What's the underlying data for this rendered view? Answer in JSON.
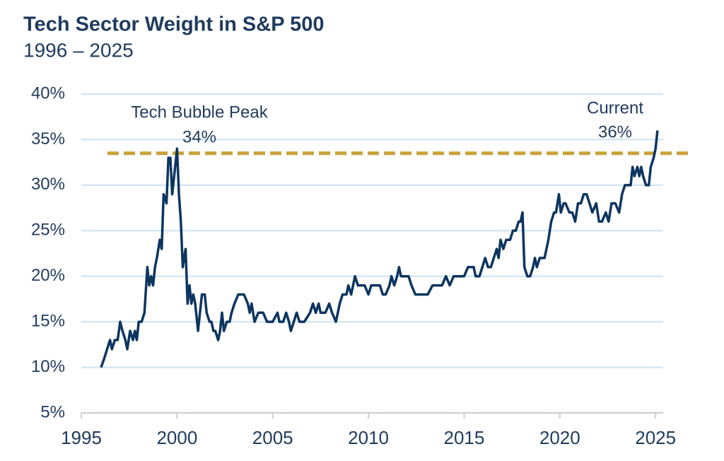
{
  "chart_data": {
    "type": "line",
    "title": "Tech Sector Weight in S&P 500",
    "subtitle": "1996 – 2025",
    "color": "#0d3560",
    "grid": true,
    "xlim": [
      1995,
      2025.4
    ],
    "xticks": [
      1995,
      2000,
      2005,
      2010,
      2015,
      2020,
      2025
    ],
    "ylim": [
      5,
      40
    ],
    "yticks": [
      {
        "value": 5,
        "label": "5%"
      },
      {
        "value": 10,
        "label": "10%"
      },
      {
        "value": 15,
        "label": "15%"
      },
      {
        "value": 20,
        "label": "20%"
      },
      {
        "value": 25,
        "label": "25%"
      },
      {
        "value": 30,
        "label": "30%"
      },
      {
        "value": 35,
        "label": "35%"
      },
      {
        "value": 40,
        "label": "40%"
      }
    ],
    "reference_line": {
      "value": 33.5,
      "color": "#c9a33a",
      "dashed": true
    },
    "peak_label": "Tech Bubble Peak",
    "peak_value_label": "34%",
    "current_label": "Current",
    "current_value_label": "36%",
    "x": [
      1996.03,
      1996.2,
      1996.35,
      1996.5,
      1996.6,
      1996.75,
      1996.9,
      1997.03,
      1997.15,
      1997.3,
      1997.4,
      1997.55,
      1997.7,
      1997.8,
      1997.9,
      1998.0,
      1998.15,
      1998.3,
      1998.45,
      1998.55,
      1998.65,
      1998.75,
      1998.85,
      1998.95,
      1999.1,
      1999.2,
      1999.3,
      1999.45,
      1999.55,
      1999.65,
      1999.75,
      1999.9,
      2000.0,
      2000.1,
      2000.2,
      2000.3,
      2000.45,
      2000.55,
      2000.65,
      2000.75,
      2000.85,
      2000.95,
      2001.1,
      2001.2,
      2001.3,
      2001.45,
      2001.55,
      2001.7,
      2001.8,
      2001.9,
      2002.0,
      2002.15,
      2002.25,
      2002.35,
      2002.45,
      2002.6,
      2002.75,
      2002.85,
      2003.0,
      2003.2,
      2003.5,
      2003.7,
      2003.8,
      2003.9,
      2004.05,
      2004.25,
      2004.5,
      2004.7,
      2005.0,
      2005.25,
      2005.35,
      2005.55,
      2005.7,
      2005.85,
      2005.95,
      2006.1,
      2006.25,
      2006.4,
      2006.65,
      2006.95,
      2007.1,
      2007.25,
      2007.4,
      2007.5,
      2007.75,
      2007.95,
      2008.1,
      2008.3,
      2008.5,
      2008.65,
      2008.85,
      2008.95,
      2009.1,
      2009.3,
      2009.45,
      2009.8,
      2010.0,
      2010.15,
      2010.6,
      2010.75,
      2010.9,
      2011.1,
      2011.2,
      2011.35,
      2011.5,
      2011.6,
      2011.7,
      2012.1,
      2012.25,
      2012.45,
      2012.9,
      2013.1,
      2013.35,
      2013.85,
      2014.05,
      2014.25,
      2014.45,
      2014.7,
      2015.0,
      2015.2,
      2015.5,
      2015.6,
      2015.8,
      2015.95,
      2016.1,
      2016.25,
      2016.4,
      2016.55,
      2016.7,
      2016.8,
      2016.9,
      2017.05,
      2017.2,
      2017.4,
      2017.55,
      2017.7,
      2017.85,
      2017.95,
      2018.05,
      2018.15,
      2018.3,
      2018.45,
      2018.6,
      2018.7,
      2018.8,
      2018.95,
      2019.2,
      2019.4,
      2019.55,
      2019.7,
      2019.8,
      2019.95,
      2020.05,
      2020.2,
      2020.3,
      2020.5,
      2020.65,
      2020.8,
      2020.95,
      2021.1,
      2021.25,
      2021.4,
      2021.55,
      2021.7,
      2021.9,
      2022.05,
      2022.2,
      2022.4,
      2022.55,
      2022.7,
      2022.9,
      2023.1,
      2023.25,
      2023.4,
      2023.55,
      2023.7,
      2023.8,
      2023.9,
      2024.05,
      2024.15,
      2024.25,
      2024.35,
      2024.5,
      2024.65,
      2024.75,
      2024.9,
      2025.0,
      2025.1
    ],
    "values": [
      10,
      11,
      12,
      13,
      12,
      13,
      13,
      15,
      14,
      13,
      12,
      14,
      13,
      14,
      13,
      15,
      15,
      16,
      21,
      19,
      20,
      19,
      21,
      22,
      24,
      23,
      29,
      28,
      33,
      33,
      29,
      32,
      34,
      29,
      26,
      21,
      23,
      17,
      19,
      17,
      18,
      17,
      14,
      16,
      18,
      18,
      16,
      15,
      15,
      14,
      14,
      13,
      14,
      16,
      14,
      15,
      15,
      16,
      17,
      18,
      18,
      17,
      16,
      17,
      15,
      16,
      16,
      15,
      15,
      16,
      15,
      15,
      16,
      15,
      14,
      15,
      16,
      15,
      15,
      16,
      17,
      16,
      17,
      16,
      16,
      17,
      16,
      15,
      17,
      18,
      18,
      19,
      18,
      20,
      19,
      19,
      18,
      19,
      19,
      18,
      18,
      19,
      20,
      19,
      20,
      21,
      20,
      20,
      19,
      18,
      18,
      18,
      19,
      19,
      20,
      19,
      20,
      20,
      20,
      21,
      21,
      20,
      20,
      21,
      22,
      21,
      21,
      22,
      23,
      22,
      24,
      23,
      24,
      24,
      25,
      25,
      26,
      26,
      27,
      21,
      20,
      20,
      21,
      22,
      21,
      22,
      22,
      24,
      26,
      27,
      27,
      29,
      27,
      28,
      28,
      27,
      27,
      26,
      28,
      28,
      29,
      29,
      28,
      27,
      28,
      26,
      26,
      27,
      26,
      28,
      28,
      27,
      29,
      30,
      30,
      30,
      32,
      31,
      32,
      31,
      32,
      31,
      30,
      30,
      32,
      33,
      34,
      36
    ]
  }
}
